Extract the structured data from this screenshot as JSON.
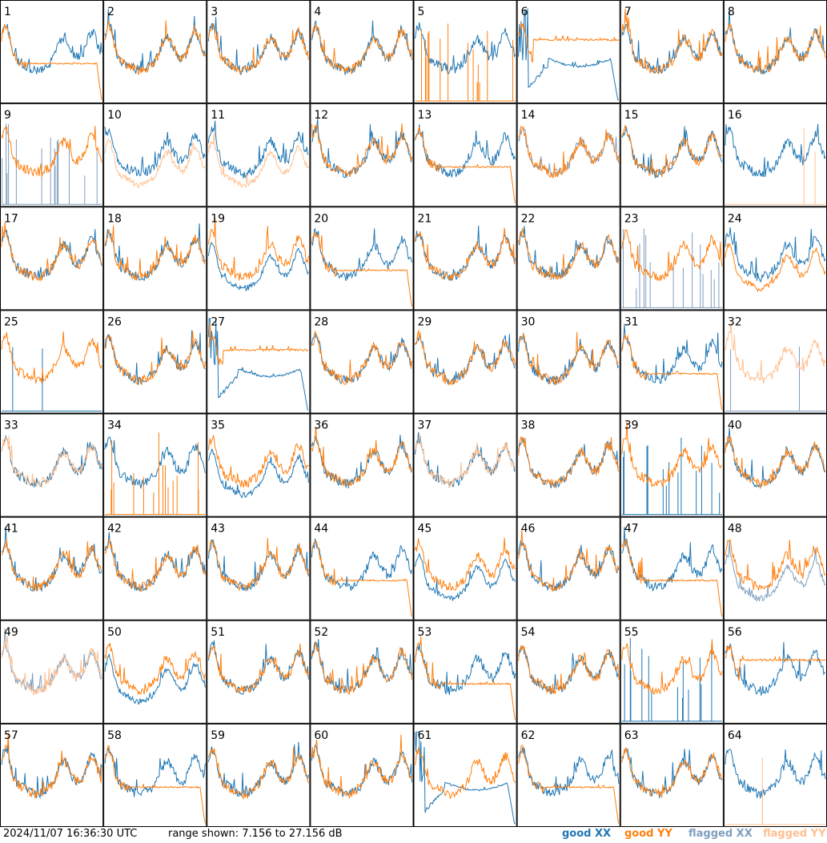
{
  "footer": {
    "timestamp": "2024/11/07 16:36:30 UTC",
    "range_label": "range shown: 7.156 to 27.156 dB"
  },
  "legend": [
    {
      "label": "good XX",
      "color": "#1f77b4"
    },
    {
      "label": "good YY",
      "color": "#ff7f0e"
    },
    {
      "label": "flagged XX",
      "color": "#7f9fbf"
    },
    {
      "label": "flagged YY",
      "color": "#ffbf8f"
    }
  ],
  "chart_data": {
    "type": "line",
    "grid": {
      "rows": 8,
      "cols": 8
    },
    "ylim": [
      7.156,
      27.156
    ],
    "yunit": "dB",
    "panels": [
      {
        "id": "1",
        "xx": "spectrum",
        "yy": "drop"
      },
      {
        "id": "2",
        "xx": "spectrum",
        "yy": "spectrum"
      },
      {
        "id": "3",
        "xx": "spectrum",
        "yy": "spectrum"
      },
      {
        "id": "4",
        "xx": "spectrum",
        "yy": "spectrum"
      },
      {
        "id": "5",
        "xx": "spectrum",
        "yy": "spikes"
      },
      {
        "id": "6",
        "xx": "dip",
        "yy": "flat"
      },
      {
        "id": "7",
        "xx": "spectrum",
        "yy": "spectrum"
      },
      {
        "id": "8",
        "xx": "spectrum",
        "yy": "spectrum"
      },
      {
        "id": "9",
        "xx": "flagged_spikes",
        "yy": "spectrum"
      },
      {
        "id": "10",
        "xx": "spectrum",
        "yy": "flagged_low"
      },
      {
        "id": "11",
        "xx": "spectrum",
        "yy": "flagged_low"
      },
      {
        "id": "12",
        "xx": "spectrum",
        "yy": "spectrum"
      },
      {
        "id": "13",
        "xx": "spectrum",
        "yy": "drop"
      },
      {
        "id": "14",
        "xx": "flagged_spectrum",
        "yy": "spectrum"
      },
      {
        "id": "15",
        "xx": "spectrum",
        "yy": "spectrum"
      },
      {
        "id": "16",
        "xx": "spectrum",
        "yy": "flagged_spike"
      },
      {
        "id": "17",
        "xx": "spectrum",
        "yy": "spectrum"
      },
      {
        "id": "18",
        "xx": "spectrum",
        "yy": "spectrum"
      },
      {
        "id": "19",
        "xx": "low",
        "yy": "spectrum"
      },
      {
        "id": "20",
        "xx": "spectrum",
        "yy": "drop"
      },
      {
        "id": "21",
        "xx": "spectrum",
        "yy": "spectrum"
      },
      {
        "id": "22",
        "xx": "spectrum",
        "yy": "spectrum"
      },
      {
        "id": "23",
        "xx": "flagged_spikes",
        "yy": "spectrum"
      },
      {
        "id": "24",
        "xx": "spectrum",
        "yy": "low"
      },
      {
        "id": "25",
        "xx": "spike",
        "yy": "spectrum"
      },
      {
        "id": "26",
        "xx": "spectrum",
        "yy": "spectrum"
      },
      {
        "id": "27",
        "xx": "dip",
        "yy": "flat"
      },
      {
        "id": "28",
        "xx": "spectrum",
        "yy": "spectrum"
      },
      {
        "id": "29",
        "xx": "spectrum",
        "yy": "spectrum"
      },
      {
        "id": "30",
        "xx": "spectrum",
        "yy": "spectrum"
      },
      {
        "id": "31",
        "xx": "spectrum",
        "yy": "drop"
      },
      {
        "id": "32",
        "xx": "flagged_spike",
        "yy": "flagged_spectrum"
      },
      {
        "id": "33",
        "xx": "spectrum",
        "yy": "flagged_spectrum"
      },
      {
        "id": "34",
        "xx": "spectrum",
        "yy": "spikes"
      },
      {
        "id": "35",
        "xx": "low",
        "yy": "spectrum"
      },
      {
        "id": "36",
        "xx": "spectrum",
        "yy": "spectrum"
      },
      {
        "id": "37",
        "xx": "spectrum",
        "yy": "flagged_spectrum"
      },
      {
        "id": "38",
        "xx": "spectrum",
        "yy": "spectrum"
      },
      {
        "id": "39",
        "xx": "spikes",
        "yy": "spectrum"
      },
      {
        "id": "40",
        "xx": "spectrum",
        "yy": "spectrum"
      },
      {
        "id": "41",
        "xx": "spectrum",
        "yy": "spectrum"
      },
      {
        "id": "42",
        "xx": "spectrum",
        "yy": "spectrum"
      },
      {
        "id": "43",
        "xx": "spectrum",
        "yy": "spectrum"
      },
      {
        "id": "44",
        "xx": "spectrum",
        "yy": "drop"
      },
      {
        "id": "45",
        "xx": "low",
        "yy": "spectrum"
      },
      {
        "id": "46",
        "xx": "spectrum",
        "yy": "spectrum"
      },
      {
        "id": "47",
        "xx": "spectrum",
        "yy": "drop"
      },
      {
        "id": "48",
        "xx": "flagged_low",
        "yy": "spectrum"
      },
      {
        "id": "49",
        "xx": "flagged_spectrum",
        "yy": "flagged_spectrum"
      },
      {
        "id": "50",
        "xx": "low",
        "yy": "spectrum"
      },
      {
        "id": "51",
        "xx": "spectrum",
        "yy": "spectrum"
      },
      {
        "id": "52",
        "xx": "spectrum",
        "yy": "spectrum"
      },
      {
        "id": "53",
        "xx": "spectrum",
        "yy": "drop"
      },
      {
        "id": "54",
        "xx": "spectrum",
        "yy": "spectrum"
      },
      {
        "id": "55",
        "xx": "spikes",
        "yy": "spectrum"
      },
      {
        "id": "56",
        "xx": "spectrum",
        "yy": "flat"
      },
      {
        "id": "57",
        "xx": "spectrum",
        "yy": "spectrum"
      },
      {
        "id": "58",
        "xx": "spectrum",
        "yy": "drop"
      },
      {
        "id": "59",
        "xx": "spectrum",
        "yy": "spectrum"
      },
      {
        "id": "60",
        "xx": "spectrum",
        "yy": "spectrum"
      },
      {
        "id": "61",
        "xx": "dip",
        "yy": "spectrum"
      },
      {
        "id": "62",
        "xx": "spectrum",
        "yy": "drop"
      },
      {
        "id": "63",
        "xx": "spectrum",
        "yy": "spectrum"
      },
      {
        "id": "64",
        "xx": "spectrum",
        "yy": "flagged_spike"
      }
    ]
  }
}
